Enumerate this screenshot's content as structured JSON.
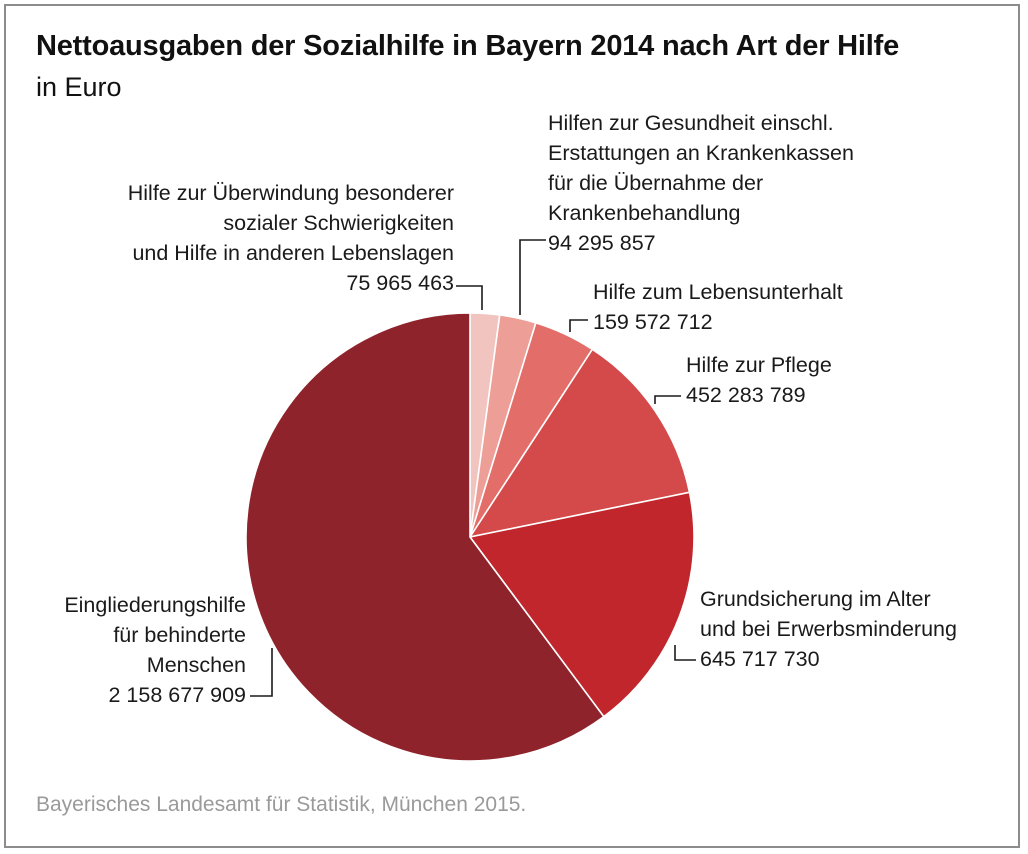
{
  "title": "Nettoausgaben der Sozialhilfe in Bayern 2014 nach Art der Hilfe",
  "subtitle": "in Euro",
  "source": "Bayerisches Landesamt für Statistik, München 2015.",
  "chart_data": {
    "type": "pie",
    "title": "Nettoausgaben der Sozialhilfe in Bayern 2014 nach Art der Hilfe",
    "subtitle": "in Euro",
    "slices": [
      {
        "name": "Hilfe zur Überwindung besonderer sozialer Schwierigkeiten und Hilfe in anderen Lebenslagen",
        "label_lines": [
          "Hilfe zur Überwindung besonderer",
          "sozialer Schwierigkeiten",
          "und Hilfe in anderen Lebenslagen"
        ],
        "value": 75965463,
        "value_label": "75 965 463",
        "color": "#f2c4bf"
      },
      {
        "name": "Hilfen zur Gesundheit einschl. Erstattungen an Krankenkassen für die Übernahme der Krankenbehandlung",
        "label_lines": [
          "Hilfen zur Gesundheit einschl.",
          "Erstattungen an Krankenkassen",
          "für die Übernahme der",
          "Krankenbehandlung"
        ],
        "value": 94295857,
        "value_label": "94 295 857",
        "color": "#ed9f97"
      },
      {
        "name": "Hilfe zum Lebensunterhalt",
        "label_lines": [
          "Hilfe zum Lebensunterhalt"
        ],
        "value": 159572712,
        "value_label": "159 572 712",
        "color": "#e36d68"
      },
      {
        "name": "Hilfe zur Pflege",
        "label_lines": [
          "Hilfe zur Pflege"
        ],
        "value": 452283789,
        "value_label": "452 283 789",
        "color": "#d44a4a"
      },
      {
        "name": "Grundsicherung im Alter und bei Erwerbsminderung",
        "label_lines": [
          "Grundsicherung im Alter",
          "und bei Erwerbsminderung"
        ],
        "value": 645717730,
        "value_label": "645 717 730",
        "color": "#c0262b"
      },
      {
        "name": "Eingliederungshilfe für behinderte Menschen",
        "label_lines": [
          "Eingliederungshilfe",
          "für behinderte",
          "Menschen"
        ],
        "value": 2158677909,
        "value_label": "2 158 677 909",
        "color": "#8e232b"
      }
    ],
    "start_angle_deg": 0,
    "direction": "clockwise"
  }
}
